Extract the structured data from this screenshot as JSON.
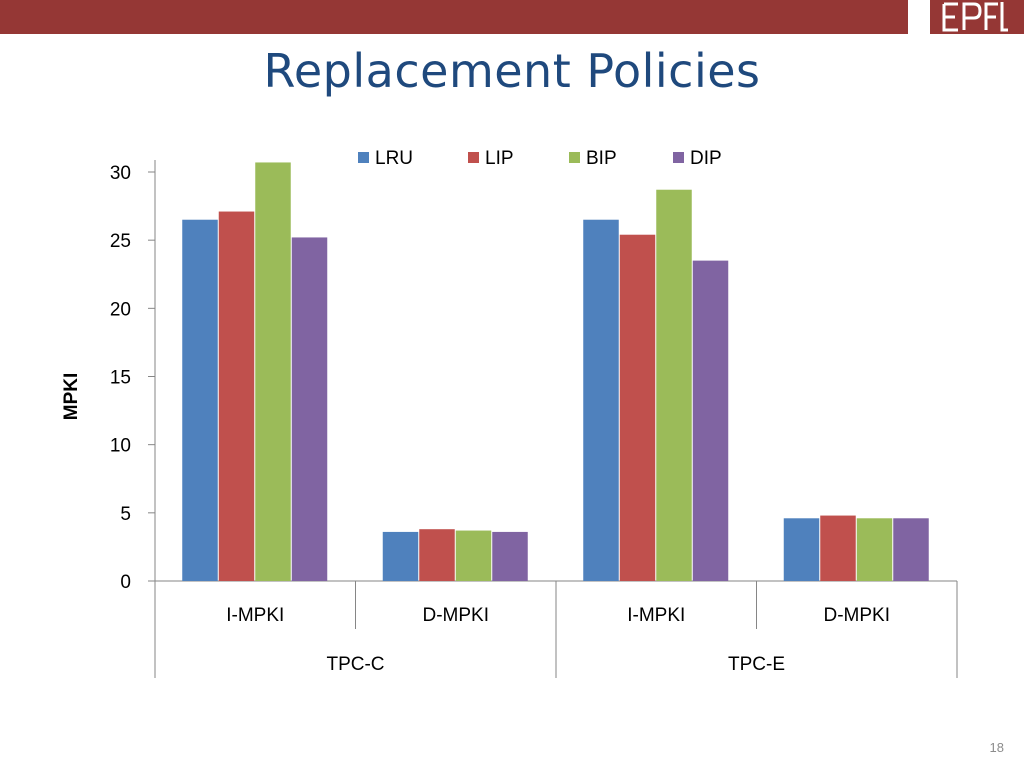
{
  "slide": {
    "title": "Replacement Policies",
    "page_number": "18",
    "band_color": "#953735",
    "title_color": "#1f497d"
  },
  "logo": {
    "text": "EPFL",
    "icon": "epfl-logo-icon"
  },
  "chart_data": {
    "type": "bar",
    "ylabel": "MPKI",
    "xlabel": "",
    "ylim": [
      0,
      30
    ],
    "yticks": [
      0,
      5,
      10,
      15,
      20,
      25,
      30
    ],
    "grid": false,
    "legend_position": "top",
    "groups": [
      {
        "label": "TPC-C",
        "categories": [
          "I-MPKI",
          "D-MPKI"
        ]
      },
      {
        "label": "TPC-E",
        "categories": [
          "I-MPKI",
          "D-MPKI"
        ]
      }
    ],
    "categories": [
      "I-MPKI",
      "D-MPKI",
      "I-MPKI",
      "D-MPKI"
    ],
    "series": [
      {
        "name": "LRU",
        "color": "#4f81bd",
        "values": [
          26.5,
          3.6,
          26.5,
          4.6
        ]
      },
      {
        "name": "LIP",
        "color": "#c0504d",
        "values": [
          27.1,
          3.8,
          25.4,
          4.8
        ]
      },
      {
        "name": "BIP",
        "color": "#9bbb59",
        "values": [
          30.7,
          3.7,
          28.7,
          4.6
        ]
      },
      {
        "name": "DIP",
        "color": "#8064a2",
        "values": [
          25.2,
          3.6,
          23.5,
          4.6
        ]
      }
    ]
  }
}
